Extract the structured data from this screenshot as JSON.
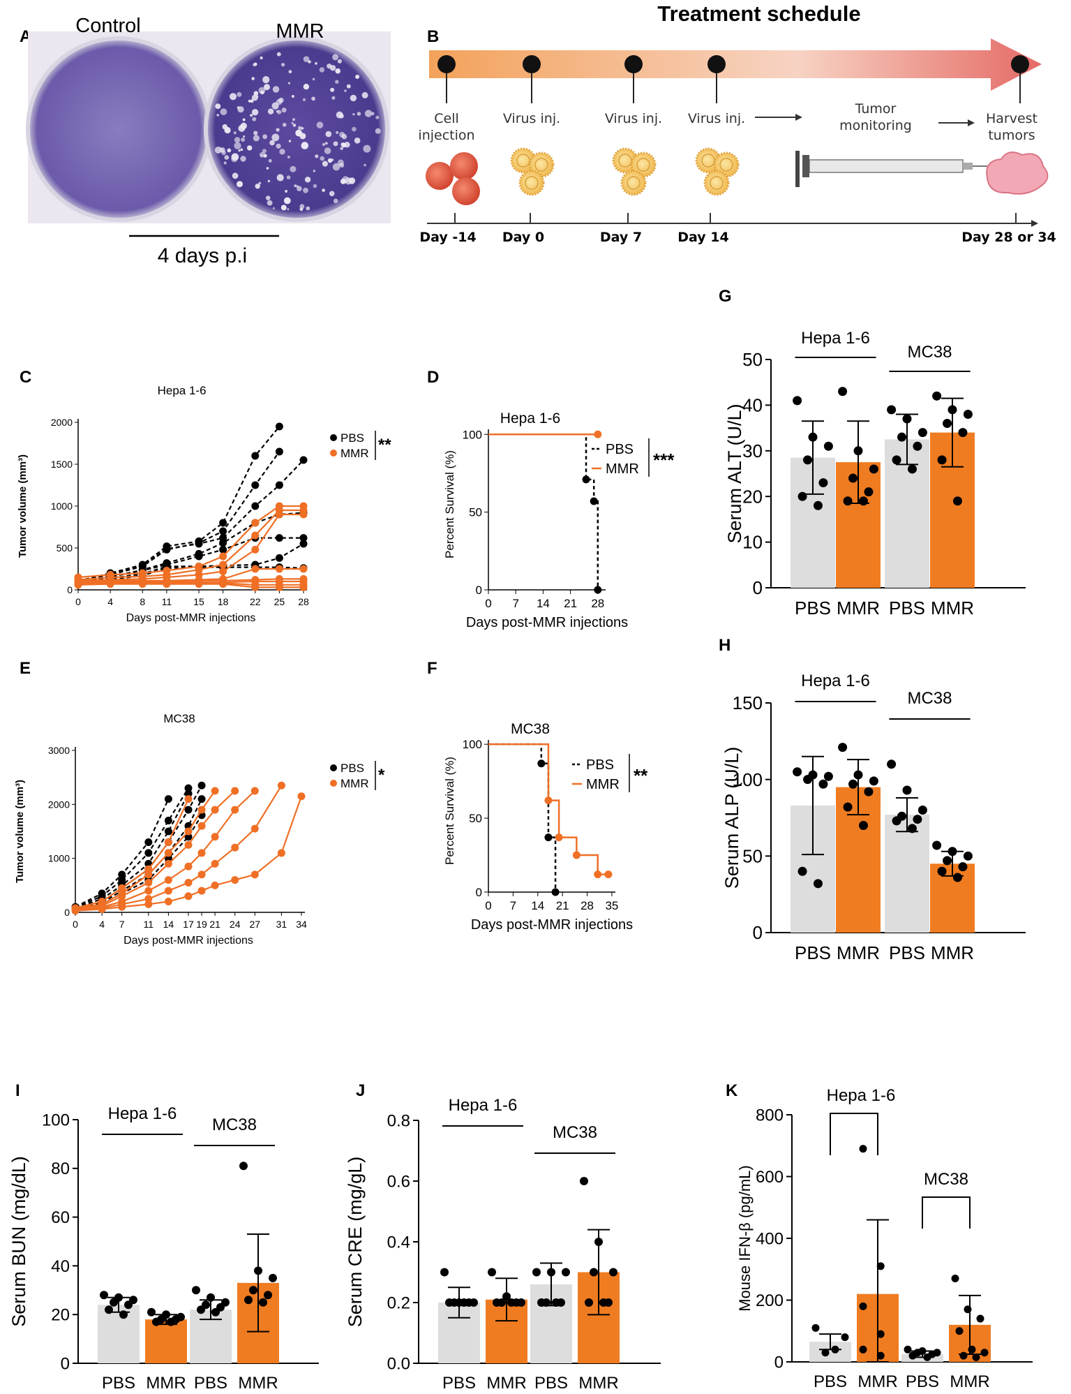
{
  "panel_labels": [
    "A",
    "B",
    "C",
    "D",
    "E",
    "F",
    "G",
    "H",
    "I",
    "J",
    "K"
  ],
  "colors": {
    "pbs": "#000000",
    "mmr": "#ef6f25",
    "pbs_bar": "#dddddd",
    "mmr_bar": "#f07c21",
    "dish": "#6b5aa8",
    "arrow_start": "#f4a460",
    "arrow_end": "#e06060"
  },
  "panel_a": {
    "left_label": "Control",
    "right_label": "MMR",
    "scale_label": "4 days p.i"
  },
  "panel_b": {
    "title": "Treatment schedule",
    "events": [
      "Cell injection",
      "Virus inj.",
      "Virus inj.",
      "Virus inj.",
      "Tumor monitoring",
      "Harvest tumors"
    ],
    "days": [
      "Day -14",
      "Day 0",
      "Day 7",
      "Day 14",
      "Day 28 or 34"
    ]
  },
  "chart_data": [
    {
      "panel": "C",
      "type": "line",
      "title": "Hepa 1-6",
      "xlabel": "Days post-MMR injections",
      "ylabel": "Tumor volume (mm³)",
      "x": [
        0,
        4,
        8,
        11,
        15,
        18,
        22,
        25,
        28
      ],
      "xticks": [
        "0",
        "4",
        "8",
        "11",
        "15",
        "18",
        "22",
        "25",
        "28"
      ],
      "ylim": [
        0,
        2000
      ],
      "yticks": [
        "0",
        "500",
        "1000",
        "1500",
        "2000"
      ],
      "legend": [
        "PBS",
        "MMR"
      ],
      "significance": "**",
      "series": [
        {
          "name": "PBS",
          "style": "dashed",
          "values": [
            100,
            200,
            300,
            520,
            580,
            800,
            1600,
            1950,
            null
          ]
        },
        {
          "name": "PBS",
          "style": "dashed",
          "values": [
            100,
            180,
            280,
            480,
            560,
            700,
            1250,
            1650,
            null
          ]
        },
        {
          "name": "PBS",
          "style": "dashed",
          "values": [
            110,
            190,
            290,
            490,
            550,
            620,
            1000,
            1250,
            1550
          ]
        },
        {
          "name": "PBS",
          "style": "dashed",
          "values": [
            90,
            150,
            240,
            320,
            430,
            560,
            800,
            900,
            920
          ]
        },
        {
          "name": "PBS",
          "style": "dashed",
          "values": [
            100,
            160,
            230,
            300,
            400,
            480,
            620,
            620,
            620
          ]
        },
        {
          "name": "PBS",
          "style": "dashed",
          "values": [
            95,
            140,
            190,
            280,
            280,
            290,
            300,
            380,
            550
          ]
        },
        {
          "name": "PBS",
          "style": "dashed",
          "values": [
            80,
            120,
            170,
            260,
            270,
            270,
            270,
            270,
            260
          ]
        },
        {
          "name": "MMR",
          "values": [
            150,
            180,
            200,
            230,
            280,
            400,
            800,
            1000,
            1000
          ]
        },
        {
          "name": "MMR",
          "values": [
            120,
            150,
            160,
            180,
            240,
            300,
            650,
            950,
            950
          ]
        },
        {
          "name": "MMR",
          "values": [
            110,
            120,
            130,
            150,
            180,
            220,
            480,
            900,
            900
          ]
        },
        {
          "name": "MMR",
          "values": [
            100,
            110,
            110,
            110,
            120,
            130,
            250,
            250,
            250
          ]
        },
        {
          "name": "MMR",
          "values": [
            90,
            100,
            100,
            100,
            110,
            110,
            120,
            130,
            130
          ]
        },
        {
          "name": "MMR",
          "values": [
            80,
            90,
            90,
            90,
            90,
            90,
            100,
            100,
            100
          ]
        },
        {
          "name": "MMR",
          "values": [
            70,
            80,
            80,
            80,
            80,
            80,
            60,
            60,
            60
          ]
        },
        {
          "name": "MMR",
          "values": [
            60,
            70,
            70,
            70,
            70,
            70,
            30,
            30,
            30
          ]
        }
      ]
    },
    {
      "panel": "D",
      "type": "line",
      "subtype": "survival",
      "title": "Hepa 1-6",
      "xlabel": "Days post-MMR injections",
      "ylabel": "Percent Survival (%)",
      "xlim": [
        0,
        30
      ],
      "xticks": [
        "0",
        "7",
        "14",
        "21",
        "28"
      ],
      "ylim": [
        0,
        110
      ],
      "yticks": [
        "0",
        "50",
        "100"
      ],
      "legend": [
        "PBS",
        "MMR"
      ],
      "significance": "***",
      "series": [
        {
          "name": "PBS",
          "style": "dashed",
          "x": [
            0,
            25,
            25,
            27,
            27,
            28,
            28
          ],
          "values": [
            100,
            100,
            71,
            71,
            57,
            57,
            0
          ]
        },
        {
          "name": "MMR",
          "x": [
            0,
            28
          ],
          "values": [
            100,
            100
          ]
        }
      ]
    },
    {
      "panel": "E",
      "type": "line",
      "title": "MC38",
      "xlabel": "Days post-MMR injections",
      "ylabel": "Tumor volume (mm³)",
      "x": [
        0,
        4,
        7,
        11,
        14,
        17,
        19,
        21,
        24,
        27,
        31,
        34
      ],
      "xticks": [
        "0",
        "4",
        "7",
        "11",
        "14",
        "17",
        "19",
        "21",
        "24",
        "27",
        "31",
        "34"
      ],
      "ylim": [
        0,
        3000
      ],
      "yticks": [
        "0",
        "1000",
        "2000",
        "3000"
      ],
      "legend": [
        "PBS",
        "MMR"
      ],
      "significance": "*",
      "series": [
        {
          "name": "PBS",
          "style": "dashed",
          "values": [
            100,
            350,
            700,
            1300,
            2100,
            null,
            null,
            null,
            null,
            null,
            null,
            null
          ]
        },
        {
          "name": "PBS",
          "style": "dashed",
          "values": [
            90,
            300,
            600,
            1100,
            1700,
            2300,
            null,
            null,
            null,
            null,
            null,
            null
          ]
        },
        {
          "name": "PBS",
          "style": "dashed",
          "values": [
            80,
            250,
            500,
            900,
            1500,
            2200,
            null,
            null,
            null,
            null,
            null,
            null
          ]
        },
        {
          "name": "PBS",
          "style": "dashed",
          "values": [
            70,
            200,
            450,
            800,
            1300,
            1900,
            2350,
            null,
            null,
            null,
            null,
            null
          ]
        },
        {
          "name": "PBS",
          "style": "dashed",
          "values": [
            60,
            180,
            400,
            700,
            1100,
            1600,
            2100,
            null,
            null,
            null,
            null,
            null
          ]
        },
        {
          "name": "PBS",
          "style": "dashed",
          "values": [
            50,
            150,
            350,
            600,
            1000,
            1400,
            1800,
            null,
            null,
            null,
            null,
            null
          ]
        },
        {
          "name": "MMR",
          "values": [
            80,
            200,
            450,
            800,
            1300,
            2100,
            null,
            null,
            null,
            null,
            null,
            null
          ]
        },
        {
          "name": "MMR",
          "values": [
            70,
            150,
            350,
            700,
            1100,
            1500,
            1900,
            2250,
            null,
            null,
            null,
            null
          ]
        },
        {
          "name": "MMR",
          "values": [
            60,
            120,
            300,
            550,
            900,
            1250,
            1600,
            1900,
            2250,
            null,
            null,
            null
          ]
        },
        {
          "name": "MMR",
          "values": [
            50,
            100,
            200,
            400,
            600,
            850,
            1100,
            1400,
            1900,
            2250,
            null,
            null
          ]
        },
        {
          "name": "MMR",
          "values": [
            40,
            80,
            150,
            250,
            400,
            550,
            700,
            900,
            1200,
            1550,
            2350,
            null
          ]
        },
        {
          "name": "MMR",
          "values": [
            30,
            60,
            100,
            150,
            200,
            300,
            400,
            500,
            600,
            700,
            1100,
            2150
          ]
        }
      ]
    },
    {
      "panel": "F",
      "type": "line",
      "subtype": "survival",
      "title": "MC38",
      "xlabel": "Days post-MMR injections",
      "ylabel": "Percent Survival (%)",
      "xlim": [
        0,
        36
      ],
      "xticks": [
        "0",
        "7",
        "14",
        "21",
        "28",
        "35"
      ],
      "ylim": [
        0,
        110
      ],
      "yticks": [
        "0",
        "50",
        "100"
      ],
      "legend": [
        "PBS",
        "MMR"
      ],
      "significance": "**",
      "series": [
        {
          "name": "PBS",
          "style": "dashed",
          "x": [
            0,
            15,
            15,
            17,
            17,
            19,
            19
          ],
          "values": [
            100,
            100,
            87,
            87,
            37,
            37,
            0
          ]
        },
        {
          "name": "MMR",
          "x": [
            0,
            17,
            17,
            20,
            20,
            22,
            22,
            25,
            25,
            31,
            31,
            34
          ],
          "values": [
            100,
            100,
            62,
            62,
            37,
            37,
            37,
            37,
            25,
            25,
            12,
            12
          ]
        }
      ]
    },
    {
      "panel": "G",
      "type": "bar",
      "ylabel": "Serum ALT (U/L)",
      "categories": [
        "PBS",
        "MMR",
        "PBS",
        "MMR"
      ],
      "groups": [
        "Hepa 1-6",
        "MC38"
      ],
      "values": [
        28.5,
        27.5,
        32.5,
        34
      ],
      "errors": [
        8,
        9,
        5.5,
        7.5
      ],
      "ylim": [
        0,
        50
      ],
      "yticks": [
        "0",
        "10",
        "20",
        "30",
        "40",
        "50"
      ],
      "points": [
        [
          41,
          33,
          31,
          28,
          23,
          20,
          18
        ],
        [
          43,
          30,
          26,
          24,
          21,
          19,
          19
        ],
        [
          39,
          37,
          34,
          33,
          31,
          28,
          26
        ],
        [
          42,
          39,
          38,
          36,
          34,
          28,
          19
        ]
      ]
    },
    {
      "panel": "H",
      "type": "bar",
      "ylabel": "Serum ALP (U/L)",
      "categories": [
        "PBS",
        "MMR",
        "PBS",
        "MMR"
      ],
      "groups": [
        "Hepa 1-6",
        "MC38"
      ],
      "values": [
        83,
        95,
        77,
        45
      ],
      "errors": [
        32,
        18,
        11,
        8
      ],
      "ylim": [
        0,
        150
      ],
      "yticks": [
        "0",
        "50",
        "100",
        "150"
      ],
      "points": [
        [
          105,
          103,
          102,
          100,
          97,
          40,
          32
        ],
        [
          121,
          103,
          99,
          97,
          92,
          82,
          70
        ],
        [
          110,
          93,
          80,
          76,
          74,
          73,
          68
        ],
        [
          57,
          53,
          50,
          47,
          43,
          40,
          36
        ]
      ]
    },
    {
      "panel": "I",
      "type": "bar",
      "ylabel": "Serum BUN (mg/dL)",
      "categories": [
        "PBS",
        "MMR",
        "PBS",
        "MMR"
      ],
      "groups": [
        "Hepa 1-6",
        "MC38"
      ],
      "values": [
        24,
        18,
        22,
        33
      ],
      "errors": [
        3,
        2,
        4,
        20
      ],
      "ylim": [
        0,
        100
      ],
      "yticks": [
        "0",
        "20",
        "40",
        "60",
        "80",
        "100"
      ],
      "points": [
        [
          28,
          27,
          26,
          25,
          24,
          22,
          20
        ],
        [
          21,
          20,
          19,
          18,
          18,
          17,
          17
        ],
        [
          30,
          27,
          25,
          24,
          23,
          22,
          21
        ],
        [
          81,
          38,
          35,
          30,
          28,
          26,
          25
        ]
      ]
    },
    {
      "panel": "J",
      "type": "bar",
      "ylabel": "Serum CRE (mg/gL)",
      "categories": [
        "PBS",
        "MMR",
        "PBS",
        "MMR"
      ],
      "groups": [
        "Hepa 1-6",
        "MC38"
      ],
      "values": [
        0.2,
        0.21,
        0.26,
        0.3
      ],
      "errors": [
        0.05,
        0.07,
        0.07,
        0.14
      ],
      "ylim": [
        0,
        0.8
      ],
      "yticks": [
        "0.0",
        "0.2",
        "0.4",
        "0.6",
        "0.8"
      ],
      "points": [
        [
          0.3,
          0.2,
          0.2,
          0.2,
          0.2,
          0.2,
          0.2
        ],
        [
          0.3,
          0.22,
          0.2,
          0.2,
          0.2,
          0.2,
          0.2
        ],
        [
          0.3,
          0.3,
          0.3,
          0.2,
          0.2,
          0.2,
          0.2
        ],
        [
          0.6,
          0.4,
          0.3,
          0.3,
          0.2,
          0.2,
          0.2
        ]
      ]
    },
    {
      "panel": "K",
      "type": "bar",
      "ylabel": "Mouse IFN-β (pg/mL)",
      "categories": [
        "PBS",
        "MMR",
        "PBS",
        "MMR"
      ],
      "groups": [
        "Hepa 1-6",
        "MC38"
      ],
      "values": [
        65,
        220,
        25,
        120
      ],
      "errors": [
        25,
        240,
        10,
        95
      ],
      "ylim": [
        0,
        800
      ],
      "yticks": [
        "0",
        "200",
        "400",
        "600",
        "800"
      ],
      "points": [
        [
          110,
          80,
          40,
          30
        ],
        [
          690,
          310,
          180,
          90,
          40,
          20
        ],
        [
          40,
          35,
          30,
          30,
          25,
          20,
          15
        ],
        [
          270,
          170,
          140,
          100,
          40,
          30,
          20,
          15
        ]
      ],
      "brackets": true
    }
  ]
}
